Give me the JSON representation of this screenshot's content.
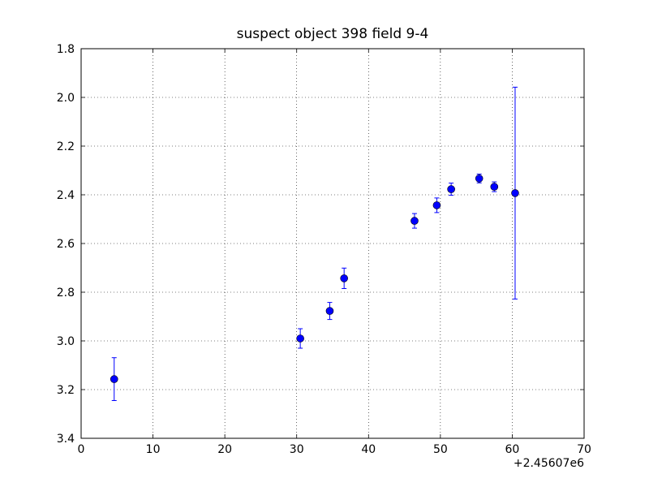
{
  "chart_data": {
    "type": "errorbar",
    "title": "suspect object 398 field 9-4",
    "x_offset_label": "+2.45607e6",
    "x": [
      4.6,
      30.5,
      34.6,
      36.6,
      46.4,
      49.5,
      51.5,
      55.4,
      57.5,
      60.4
    ],
    "values": [
      3.157,
      2.99,
      2.877,
      2.743,
      2.507,
      2.443,
      2.377,
      2.333,
      2.367,
      2.393
    ],
    "errors": [
      0.088,
      0.04,
      0.035,
      0.042,
      0.03,
      0.03,
      0.025,
      0.018,
      0.02,
      0.435
    ],
    "color": "#0000ff",
    "xlim": [
      0,
      70
    ],
    "xticks": [
      0,
      10,
      20,
      30,
      40,
      50,
      60,
      70
    ],
    "ylim": [
      3.4,
      1.8
    ],
    "yticks": [
      1.8,
      {
        "value": 2,
        "label": "2.0"
      },
      2.2,
      2.4,
      2.6,
      2.8,
      {
        "value": 3,
        "label": "3.0"
      },
      3.2,
      3.4
    ],
    "grid": true
  }
}
